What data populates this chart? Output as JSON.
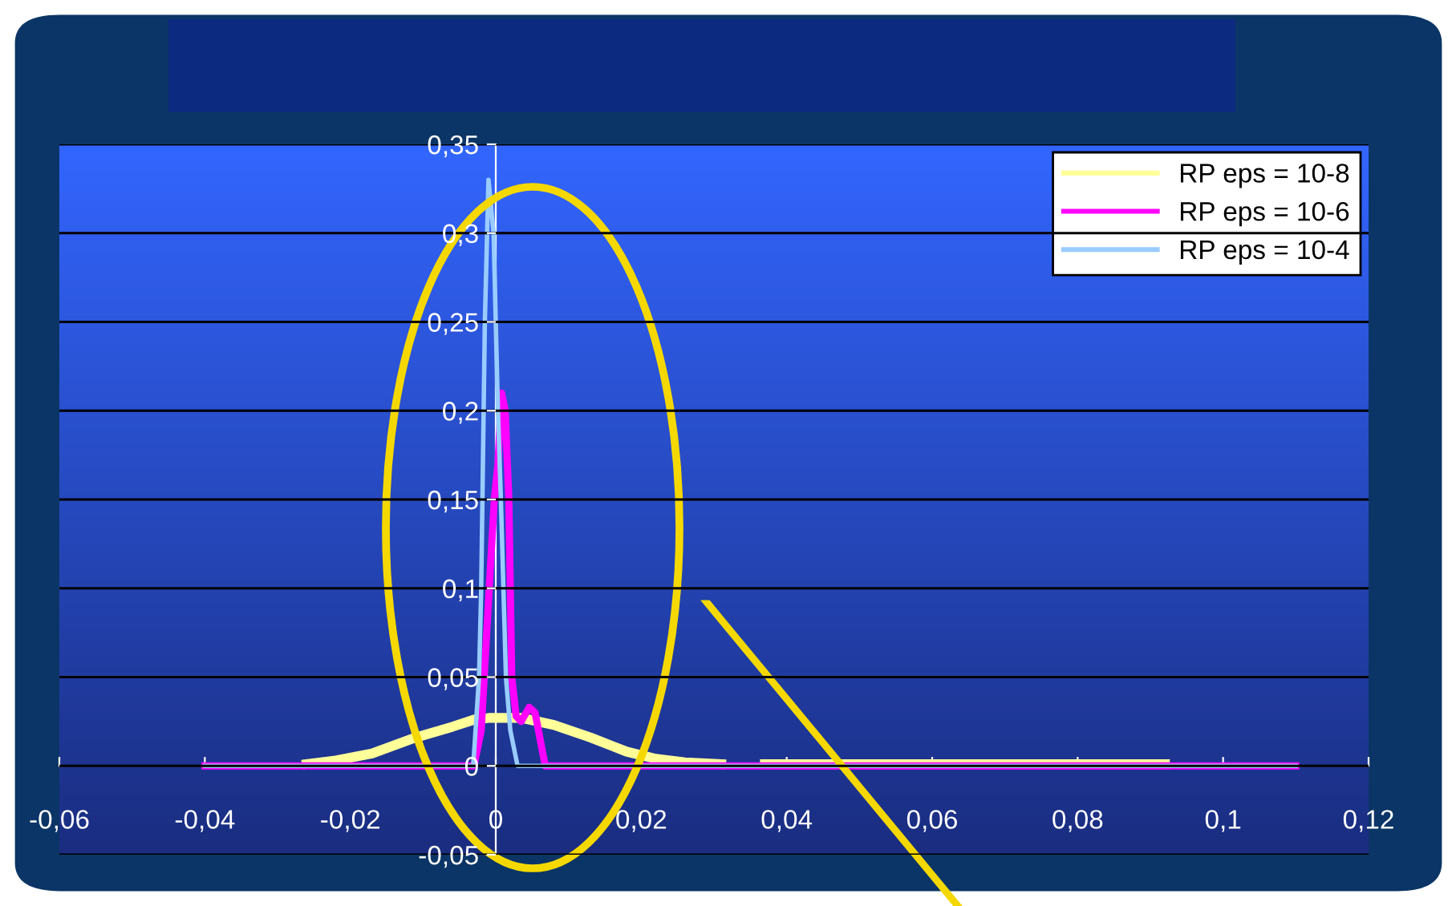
{
  "chart_data": {
    "type": "line",
    "xlim": [
      -0.06,
      0.12
    ],
    "xticks": [
      {
        "value": -0.06,
        "label": "-0,06"
      },
      {
        "value": -0.04,
        "label": "-0,04"
      },
      {
        "value": -0.02,
        "label": "-0,02"
      },
      0,
      {
        "value": 0.02,
        "label": "0,02"
      },
      {
        "value": 0.04,
        "label": "0,04"
      },
      {
        "value": 0.06,
        "label": "0,06"
      },
      {
        "value": 0.08,
        "label": "0,08"
      },
      {
        "value": 0.1,
        "label": "0,1"
      },
      {
        "value": 0.12,
        "label": "0,12"
      }
    ],
    "ylim": [
      -0.05,
      0.35
    ],
    "yticks": [
      {
        "value": -0.05,
        "label": "-0,05"
      },
      0,
      {
        "value": 0.05,
        "label": "0,05"
      },
      {
        "value": 0.1,
        "label": "0,1"
      },
      {
        "value": 0.15,
        "label": "0,15"
      },
      {
        "value": 0.2,
        "label": "0,2"
      },
      {
        "value": 0.25,
        "label": "0,25"
      },
      {
        "value": 0.3,
        "label": "0,3"
      },
      {
        "value": 0.35,
        "label": "0,35"
      }
    ],
    "grid": "y",
    "legend": "top right",
    "marker": "none",
    "line_style": "solid",
    "series": [
      {
        "name": "RP eps = 10-8",
        "color": "#ffff99",
        "x": [
          -0.026,
          -0.022,
          -0.017,
          -0.011,
          -0.006,
          -0.003,
          -0.001,
          0.0036,
          0.008,
          0.013,
          0.018,
          0.022,
          0.026,
          0.031,
          0.034,
          0.037,
          0.092
        ],
        "values": [
          0.001,
          0.003,
          0.007,
          0.016,
          0.022,
          0.026,
          0.027,
          0.027,
          0.023,
          0.016,
          0.008,
          0.004,
          0.002,
          0.001,
          null,
          0.001,
          0.001
        ]
      },
      {
        "name": "RP eps = 10-6",
        "color": "#ff00ff",
        "x": [
          -0.04,
          -0.003,
          -0.002,
          -0.0009,
          -0.0002,
          0.0003,
          0.0008,
          0.0013,
          0.0018,
          0.0022,
          0.0028,
          0.0035,
          0.0046,
          0.0054,
          0.0068,
          0.11
        ],
        "values": [
          0,
          0,
          0.02,
          0.1,
          0.15,
          0.17,
          0.21,
          0.2,
          0.15,
          0.05,
          0.028,
          0.025,
          0.033,
          0.03,
          0,
          0
        ]
      },
      {
        "name": "RP eps = 10-4",
        "color": "#99ccff",
        "x": [
          -0.04,
          -0.0031,
          -0.0023,
          -0.002,
          -0.0015,
          -0.001,
          -0.0003,
          0.0003,
          0.0007,
          0.0014,
          0.002,
          0.003,
          0.11
        ],
        "values": [
          0,
          0,
          0.05,
          0.1,
          0.25,
          0.33,
          0.3,
          0.2,
          0.15,
          0.05,
          0.02,
          0,
          0
        ]
      }
    ]
  }
}
